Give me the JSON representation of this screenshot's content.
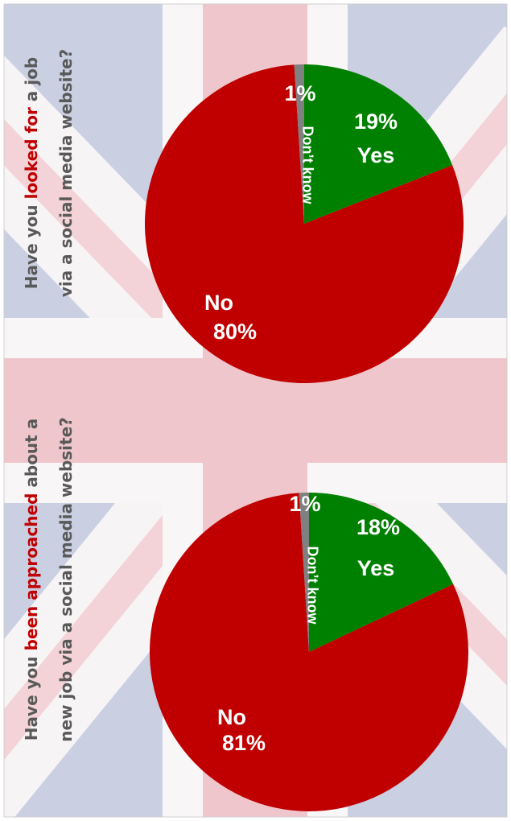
{
  "chart_data": [
    {
      "type": "pie",
      "title": [
        [
          "Have you ",
          "looked for",
          " a job"
        ],
        [
          "via a social media website?"
        ]
      ],
      "title_colors": [
        [
          "#595959",
          "#c00000",
          "#595959"
        ],
        [
          "#595959"
        ]
      ],
      "categories": [
        "Yes",
        "No",
        "Don’t know"
      ],
      "values": [
        19,
        80,
        1
      ],
      "value_labels": [
        "19%",
        "80%",
        "1%"
      ],
      "colors": [
        "#008000",
        "#c00000",
        "#808080"
      ]
    },
    {
      "type": "pie",
      "title": [
        [
          "Have you ",
          "been approached",
          " about a"
        ],
        [
          "new job via a social media website?"
        ]
      ],
      "title_colors": [
        [
          "#595959",
          "#c00000",
          "#595959"
        ],
        [
          "#595959"
        ]
      ],
      "categories": [
        "Yes",
        "No",
        "Don’t know"
      ],
      "values": [
        18,
        81,
        1
      ],
      "value_labels": [
        "18%",
        "81%",
        "1%"
      ],
      "colors": [
        "#008000",
        "#c00000",
        "#808080"
      ]
    }
  ]
}
